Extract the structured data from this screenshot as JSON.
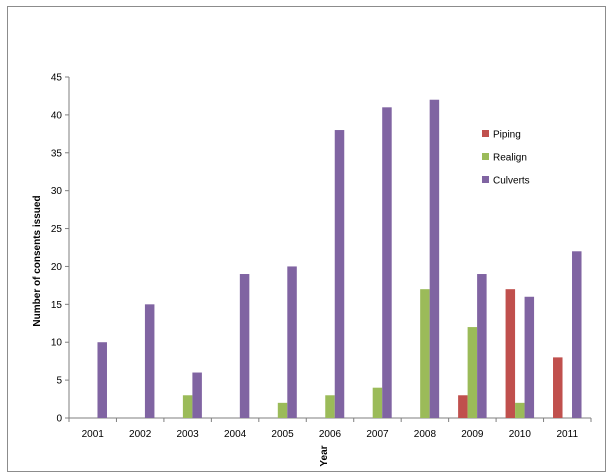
{
  "chart_data": {
    "type": "bar",
    "title": "",
    "xlabel": "Year",
    "ylabel": "Number of consents issued",
    "ylim": [
      0,
      45
    ],
    "yticks": [
      0,
      5,
      10,
      15,
      20,
      25,
      30,
      35,
      40,
      45
    ],
    "categories": [
      "2001",
      "2002",
      "2003",
      "2004",
      "2005",
      "2006",
      "2007",
      "2008",
      "2009",
      "2010",
      "2011"
    ],
    "series": [
      {
        "name": "Piping",
        "color": "#c0504d",
        "values": [
          0,
          0,
          0,
          0,
          0,
          0,
          0,
          0,
          3,
          17,
          8
        ]
      },
      {
        "name": "Realign",
        "color": "#9bbb59",
        "values": [
          0,
          0,
          3,
          0,
          2,
          3,
          4,
          17,
          12,
          2,
          0
        ]
      },
      {
        "name": "Culverts",
        "color": "#8064a2",
        "values": [
          10,
          15,
          6,
          19,
          20,
          38,
          41,
          42,
          19,
          16,
          22
        ]
      }
    ],
    "grid": false,
    "legend_position": "right"
  }
}
